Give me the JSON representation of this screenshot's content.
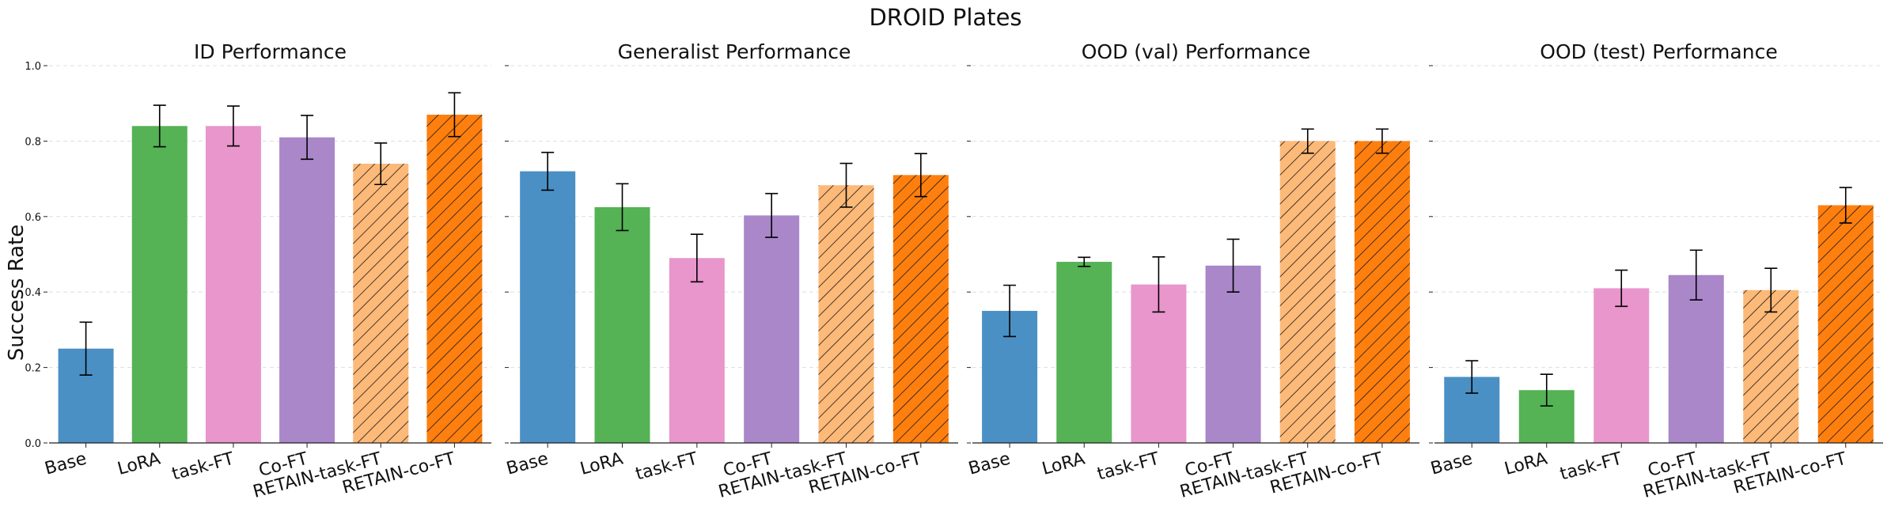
{
  "suptitle": "DROID Plates",
  "ylabel": "Success Rate",
  "colors": {
    "Base": "#4a90c4",
    "LoRA": "#55b255",
    "task-FT": "#e896cc",
    "Co-FT": "#a987c9",
    "RETAIN-task-FT": "#fdb978",
    "RETAIN-co-FT": "#ff7f0e",
    "axis": "#222222",
    "grid": "#dddddd",
    "errorbar": "#000000"
  },
  "chart_data": [
    {
      "type": "bar",
      "title": "ID Performance",
      "categories": [
        "Base",
        "LoRA",
        "task-FT",
        "Co-FT",
        "RETAIN-task-FT",
        "RETAIN-co-FT"
      ],
      "values": [
        0.25,
        0.84,
        0.84,
        0.81,
        0.74,
        0.87
      ],
      "errors": [
        0.07,
        0.055,
        0.053,
        0.058,
        0.055,
        0.058
      ],
      "hatched": [
        false,
        false,
        false,
        false,
        true,
        true
      ],
      "ylim": [
        0,
        1.0
      ],
      "yticks": [
        "0.0",
        "0.2",
        "0.4",
        "0.6",
        "0.8",
        "1.0"
      ],
      "grid": true
    },
    {
      "type": "bar",
      "title": "Generalist Performance",
      "categories": [
        "Base",
        "LoRA",
        "task-FT",
        "Co-FT",
        "RETAIN-task-FT",
        "RETAIN-co-FT"
      ],
      "values": [
        0.72,
        0.625,
        0.49,
        0.603,
        0.683,
        0.71
      ],
      "errors": [
        0.05,
        0.062,
        0.063,
        0.058,
        0.058,
        0.057
      ],
      "hatched": [
        false,
        false,
        false,
        false,
        true,
        true
      ],
      "ylim": [
        0,
        1.0
      ],
      "grid": true
    },
    {
      "type": "bar",
      "title": "OOD (val) Performance",
      "categories": [
        "Base",
        "LoRA",
        "task-FT",
        "Co-FT",
        "RETAIN-task-FT",
        "RETAIN-co-FT"
      ],
      "values": [
        0.35,
        0.48,
        0.42,
        0.47,
        0.8,
        0.8
      ],
      "errors": [
        0.068,
        0.012,
        0.073,
        0.07,
        0.032,
        0.032
      ],
      "hatched": [
        false,
        false,
        false,
        false,
        true,
        true
      ],
      "ylim": [
        0,
        1.0
      ],
      "grid": true
    },
    {
      "type": "bar",
      "title": "OOD (test) Performance",
      "categories": [
        "Base",
        "LoRA",
        "task-FT",
        "Co-FT",
        "RETAIN-task-FT",
        "RETAIN-co-FT"
      ],
      "values": [
        0.175,
        0.14,
        0.41,
        0.445,
        0.405,
        0.63
      ],
      "errors": [
        0.043,
        0.042,
        0.048,
        0.066,
        0.058,
        0.047
      ],
      "hatched": [
        false,
        false,
        false,
        false,
        true,
        true
      ],
      "ylim": [
        0,
        1.0
      ],
      "grid": true
    }
  ]
}
